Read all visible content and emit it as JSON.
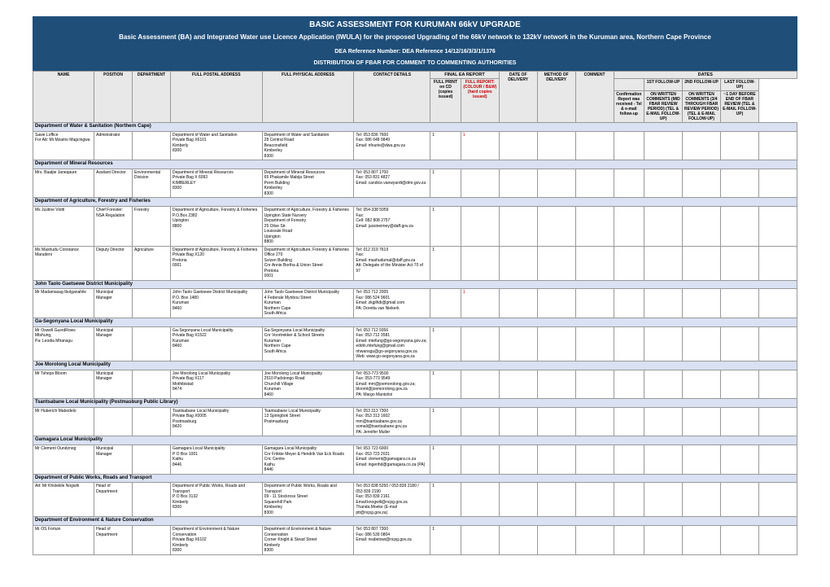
{
  "header": {
    "title1": "BASIC ASSESSMENT FOR KURUMAN 66kV UPGRADE",
    "title2": "Basic Assessment (BA) and Integrated Water use Licence Application (IWULA) for the proposed Upgrading of the 66kV network to 132kV network in the Kuruman area, Northern Cape Province",
    "ref": "DEA Reference Number: DEA Reference 14/12/16/3/3/1/1376",
    "dist": "DISTRIBUTION OF FBAR FOR COMMENT TO COMMENTING AUTHORITIES"
  },
  "columns": {
    "name": "NAME",
    "position": "POSITION",
    "department": "DEPARTMENT",
    "postal": "FULL POSTAL ADDRESS",
    "physical": "FULL PHYSICAL ADDRESS",
    "contact": "CONTACT DETAILS",
    "final_ea": "FINAL EA REPORT",
    "final_cd": "FULL PRINT on CD (copies issued)",
    "final_col": "FULL REPORT: (COLOUR / B&W) (hard copies issued)",
    "date_deliv": "DATE OF DELIVERY",
    "method": "METHOD OF DELIVERY",
    "comment": "COMMENT",
    "dates": "DATES",
    "conf": "Confirmation Report was received - Tel & e-mail follow-up",
    "fu1": "1ST FOLLOW-UP",
    "fu2": "2ND FOLLOW-UP",
    "fu3": "LAST FOLLOW-UP)",
    "fu1s": "ON WRITTEN COMMENTS (MID FBAR REVIEW PERIOD) (TEL & E-MAIL FOLLOW-UP)",
    "fu2s": "ON WRITTEN COMMENTS (3/4 THROUGH FBAR REVIEW PERIOD) (TEL & E-MAIL FOLLOW-UP)",
    "fu3s": "~1 DAY BEFORE END OF FBAR REVIEW (TEL & E-MAIL FOLLOW-UP)"
  },
  "colwidths": [
    "8%",
    "5%",
    "5%",
    "12%",
    "12%",
    "10%",
    "4%",
    "5%",
    "5%",
    "5%",
    "5%",
    "4%",
    "5%",
    "5%",
    "5%",
    "5%"
  ],
  "sections": [
    {
      "title": "Department of Water & Sanitation (Northern Cape)",
      "rows": [
        {
          "name": "Sawe Loffice\nFor Att: Mr.Mzamo Magcingwa",
          "position": "Administrator",
          "dept": "",
          "postal": "Department of Water and Sanitation\nPrivate Bag X6101\nKimberly\n8300",
          "physical": "Department of Water and Sanitation\n28 Central Road\nBeaconsfield\nKimberley\n8300",
          "contact": "Tel: 053 836 7600\nFax: 086 648 9849\nEmail: nfourie@dwa.gov.za",
          "cd": "1",
          "col": "1"
        }
      ]
    },
    {
      "title": "Department of Mineral Resources",
      "rows": [
        {
          "name": "Mrs. Baatjie Janeqaure",
          "position": "Assitant Director",
          "dept": "Environmental Division",
          "postal": "Department of Mineral Resources\nPrivate Bag X 6093\nKIMBERLEY\n8300",
          "physical": "Department of Mineral Resources\n65 Phakamile Mabija Street\nPerm Building\nKimberley\n8300",
          "contact": "Tel: 053 807 1700\nFax: 053 831 4827\nEmail: candice.vanwyardt@dmr.gov.za",
          "cd": "1",
          "col": ""
        }
      ]
    },
    {
      "title": "Department of Agriculture, Forestry and Fisheries",
      "rows": [
        {
          "name": "Ms Justine Viotti",
          "position": "Chief Forester: NSA Regulation",
          "dept": "Forestry",
          "postal": "Department of Agriculture, Forestry & Fisheries\nP.O.Box 2382\nUpington\n8800",
          "physical": "Department of Agriculture, Forestry & Fisheries\nUpington State Nursery\nDepartment of Forestry\n25 Olive Str.\nLouisvale Road\nUpington\n8800",
          "contact": "Tel: 054-338 5959\nFax:\nCell: 082 808 2757\nEmail: jussineimey@daff.gov.za",
          "cd": "1",
          "col": ""
        },
        {
          "name": "Ms Mashudu Constance Marudeni",
          "position": "Deputy Director",
          "dept": "Agriculture",
          "postal": "Department of Agriculture, Forestry & Fisheries\nPrivate Bag X120\nPretoria\n0001",
          "physical": "Department of Agriculture, Forestry & Fisheries\nOffice 270\nSvizen Building\nCnr Annie Bortha & Union Street\nPretoria\n0001",
          "contact": "Tel: 012 319 7619\nFax:\nEmail: mashudumal@daff.gov.za\nAtt: Delegate of the Minister Act 70 of 97",
          "cd": "1",
          "col": ""
        }
      ]
    },
    {
      "title": "John Taolo Gaetsewe District Municipality",
      "rows": [
        {
          "name": "Mr Madamasag Ibolganahile",
          "position": "Municipal Manager",
          "dept": "",
          "postal": "John Taolo Gaetsewe District Municipality\nP.O. Box 1480\nKuruman\n8460",
          "physical": "John Taolo Gaetsewe District Municipality\n4 Federale Mynbou Street\nKuruman\nNorthern Cape\nSouth Africa",
          "contact": "Tel: 053 712 2005\nFax: 086 524 9601\nEmail: zkgilhdi@gmail.com\nPA: Doretta van Niekerk",
          "cd": "",
          "col": "1"
        }
      ]
    },
    {
      "title": "Ga-Segonyana Local Municipality",
      "rows": [
        {
          "name": "Mr Oswell GusrdRows Mtshung,\nPa: Leodia Mhansgu",
          "position": "Municipal Manager",
          "dept": "",
          "postal": "Ga-Segonyana Local Municipality\nPrivate Bag X1522\nKuruman\n8460",
          "physical": "Ga-Segonyana Local Municipality\nCnr Voortrekker & School Streets\nKuruman\nNorthern Cape\nSouth Africa",
          "contact": "Tel: 053 712 9356\nFax: 053 712 3581\nEmail: mtefung@go-segonyana.gov.za;\neddin.mtefung@gmail.com\nnhwansgu@go-segonyana.gov.za\nWeb: www.go-segonyana.gov.za",
          "cd": "1",
          "col": ""
        }
      ]
    },
    {
      "title": "Joe Morolong Local Municipality",
      "rows": [
        {
          "name": "Mr Tshepo Bloom",
          "position": "Municipal Manager",
          "dept": "",
          "postal": "Joe Morolong Local Municipality\nPrivate Bag X117\nMothibistad\n8474",
          "physical": "Joe Morolong Local Municipality\n2510 Padstongo Road\nChurchill Village\nKuruman\n8460",
          "contact": "Tel: 053-773 9500\nFax: 053-773 9549\nEmail: mm@joemorolong.gov.za;\nbloomt@joemorolong.gov.za\nPA: Margo Mantshoi",
          "cd": "1",
          "col": ""
        }
      ]
    },
    {
      "title": "Tsantsabane Local Municipality (Postmasburg Public Library)",
      "rows": [
        {
          "name": "Mr Huberich Mabodelo",
          "position": "",
          "dept": "",
          "postal": "Tsantsabane Local Municipality\nPrivate Bag X0005\nPostmasburg\n8420",
          "physical": "Tsantsabane Local Municipality\n13 Springbok Street\nPostmasburg",
          "contact": "Tel: 053 313 7300\nFax: 053 313 1602\nmm@tsantsabane.gov.za\nsomali@tsantsabane.gov.za\nPA: Jennifer Muller",
          "cd": "1",
          "col": ""
        }
      ]
    },
    {
      "title": "Gamagara Local Municipality",
      "rows": [
        {
          "name": "Mr Clement Oundznog",
          "position": "Municipal Manager",
          "dept": "",
          "postal": "Gamagara Local Municipality\nP O Box 1001\nKathu\n8446",
          "physical": "Gamagara Local Municipality\nCnr Frikkie Meyer & Hendrik Van Eck Roads\nCric Centre\nKathu\n8446",
          "contact": "Tel: 053 723 6000\nFax: 053 723 2021\nEmail: clement@gamagara.co.za\nEmail: ingerihd@gamagara.co.za (PA)",
          "cd": "1",
          "col": ""
        }
      ]
    },
    {
      "title": "Department of Public Works, Roads and Transport",
      "rows": [
        {
          "name": "Att: Mr Kholekile Nogwili",
          "position": "Head of Department",
          "dept": "",
          "postal": "Department of Public Works, Roads and Transport\nP O Box 3132\nKimberly\n8300",
          "physical": "Department of Public Works, Roads and Transport\n09 - 11 Stockross Street\nSquarehill Park\nKimberley\n8300",
          "contact": "Tel: 053 838 5250 / 053 839 2180 /\n053 839 2190\nFax: 053 839 2161\nEmail:knogwili@ncpg.gov.za\nThanda.Moeke (E-mail ptt@ncpg.gov.za)",
          "cd": "1",
          "col": ""
        }
      ]
    },
    {
      "title": "Department of Environment & Nature Conservation",
      "rows": [
        {
          "name": "Mr OS Fortuin",
          "position": "Head of Department",
          "dept": "",
          "postal": "Department of Environment & Nature Conservation\nPrivate Bag X6102\nKimberly\n8300",
          "physical": "Department of Environment & Nature Conservation\nCorner Knight & Stead Street\nKimberly\n8300",
          "contact": "Tel: 053 807 7300\nFax: 086 539 0804\nEmail: reabetswi@ncpg.gov.za",
          "cd": "1",
          "col": ""
        }
      ]
    }
  ]
}
